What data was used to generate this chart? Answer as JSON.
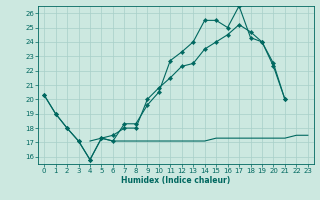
{
  "xlabel": "Humidex (Indice chaleur)",
  "bg_color": "#cce8e0",
  "grid_color": "#a8cfc8",
  "line_color": "#006860",
  "xlim": [
    -0.5,
    23.5
  ],
  "ylim": [
    15.5,
    26.5
  ],
  "yticks": [
    16,
    17,
    18,
    19,
    20,
    21,
    22,
    23,
    24,
    25,
    26
  ],
  "xticks": [
    0,
    1,
    2,
    3,
    4,
    5,
    6,
    7,
    8,
    9,
    10,
    11,
    12,
    13,
    14,
    15,
    16,
    17,
    18,
    19,
    20,
    21,
    22,
    23
  ],
  "series1_x": [
    0,
    1,
    2,
    3,
    4,
    5,
    6,
    7,
    8,
    9,
    10,
    11,
    12,
    13,
    14,
    15,
    16,
    17,
    18,
    19,
    20,
    21
  ],
  "series1_y": [
    20.3,
    19.0,
    18.0,
    17.1,
    15.8,
    17.3,
    17.1,
    18.3,
    18.3,
    19.6,
    20.5,
    22.7,
    23.3,
    24.0,
    25.5,
    25.5,
    25.0,
    26.5,
    24.3,
    24.0,
    22.3,
    20.0
  ],
  "series2_x": [
    0,
    1,
    2,
    3,
    4,
    5,
    6,
    7,
    8,
    9,
    10,
    11,
    12,
    13,
    14,
    15,
    16,
    17,
    18,
    19,
    20,
    21
  ],
  "series2_y": [
    20.3,
    19.0,
    18.0,
    17.1,
    15.8,
    17.3,
    17.5,
    18.0,
    18.0,
    20.0,
    20.8,
    21.5,
    22.3,
    22.5,
    23.5,
    24.0,
    24.5,
    25.2,
    24.7,
    24.0,
    22.5,
    20.0
  ],
  "series3_x": [
    4,
    5,
    6,
    7,
    8,
    9,
    10,
    11,
    12,
    13,
    14,
    15,
    16,
    17,
    18,
    19,
    20,
    21,
    22,
    23
  ],
  "series3_y": [
    17.1,
    17.3,
    17.1,
    17.1,
    17.1,
    17.1,
    17.1,
    17.1,
    17.1,
    17.1,
    17.1,
    17.3,
    17.3,
    17.3,
    17.3,
    17.3,
    17.3,
    17.3,
    17.5,
    17.5
  ]
}
